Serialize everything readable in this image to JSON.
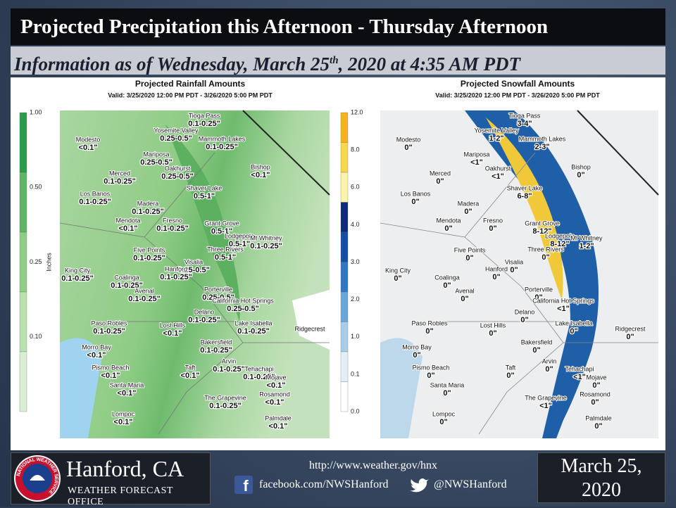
{
  "header": {
    "title": "Projected Precipitation this Afternoon - Thursday Afternoon",
    "subtitle": {
      "before": "Information as of Wednesday, March 25",
      "sup": "th",
      "after": ", 2020 at 4:35 AM PDT"
    }
  },
  "maps": [
    {
      "title": "Projected Rainfall Amounts",
      "valid": "Valid: 3/25/2020 12:00 PM PDT - 3/26/2020 5:00 PM PDT",
      "legend_label": "Inches",
      "legend_ticks": [
        "1.00",
        "0.50",
        "0.25",
        "0.10"
      ],
      "locations": [
        {
          "name": "Tioga Pass",
          "amount": "0.1-0.25\""
        },
        {
          "name": "Yosemite Valley",
          "amount": "0.25-0.5\""
        },
        {
          "name": "Mammoth Lakes",
          "amount": "0.1-0.25\""
        },
        {
          "name": "Modesto",
          "amount": "<0.1\""
        },
        {
          "name": "Mariposa",
          "amount": "0.25-0.5\""
        },
        {
          "name": "Oakhurst",
          "amount": "0.25-0.5\""
        },
        {
          "name": "Bishop",
          "amount": "<0.1\""
        },
        {
          "name": "Merced",
          "amount": "0.1-0.25\""
        },
        {
          "name": "Shaver Lake",
          "amount": "0.5-1\""
        },
        {
          "name": "Los Banos",
          "amount": "0.1-0.25\""
        },
        {
          "name": "Madera",
          "amount": "0.1-0.25\""
        },
        {
          "name": "Mendota",
          "amount": "<0.1\""
        },
        {
          "name": "Fresno",
          "amount": "0.1-0.25\""
        },
        {
          "name": "Grant Grove",
          "amount": "0.5-1\""
        },
        {
          "name": "Lodgepole",
          "amount": "0.5-1\""
        },
        {
          "name": "Mt Whitney",
          "amount": "0.1-0.25\""
        },
        {
          "name": "Five Points",
          "amount": "0.1-0.25\""
        },
        {
          "name": "Three Rivers",
          "amount": "0.5-1\""
        },
        {
          "name": "Visalia",
          "amount": "0.25-0.5\""
        },
        {
          "name": "Hanford",
          "amount": "0.1-0.25\""
        },
        {
          "name": "King City",
          "amount": "0.1-0.25\""
        },
        {
          "name": "Coalinga",
          "amount": "0.1-0.25\""
        },
        {
          "name": "Avenal",
          "amount": "0.1-0.25\""
        },
        {
          "name": "Porterville",
          "amount": "0.25-0.5\""
        },
        {
          "name": "California Hot Springs",
          "amount": "0.25-0.5\""
        },
        {
          "name": "Delano",
          "amount": "0.1-0.25\""
        },
        {
          "name": "Paso Robles",
          "amount": "0.1-0.25\""
        },
        {
          "name": "Lost Hills",
          "amount": "<0.1\""
        },
        {
          "name": "Lake Isabella",
          "amount": "0.1-0.25\""
        },
        {
          "name": "Ridgecrest"
        },
        {
          "name": "Morro Bay",
          "amount": "<0.1\""
        },
        {
          "name": "Bakersfield",
          "amount": "0.1-0.25\""
        },
        {
          "name": "Pismo Beach",
          "amount": "<0.1\""
        },
        {
          "name": "Taft",
          "amount": "<0.1\""
        },
        {
          "name": "Arvin",
          "amount": "0.1-0.25\""
        },
        {
          "name": "Tehachapi",
          "amount": "0.1-0.25\""
        },
        {
          "name": "Mojave",
          "amount": "<0.1\""
        },
        {
          "name": "Santa Maria",
          "amount": "<0.1\""
        },
        {
          "name": "Rosamond",
          "amount": "<0.1\""
        },
        {
          "name": "The Grapevine",
          "amount": "0.1-0.25\""
        },
        {
          "name": "Lompoc",
          "amount": "<0.1\""
        },
        {
          "name": "Palmdale",
          "amount": "<0.1\""
        }
      ]
    },
    {
      "title": "Projected Snowfall Amounts",
      "valid": "Valid: 3/25/2020 12:00 PM PDT - 3/26/2020 5:00 PM PDT",
      "legend_ticks": [
        "12.0",
        "8.0",
        "6.0",
        "4.0",
        "3.0",
        "2.0",
        "1.0",
        "0.1",
        "0.0"
      ],
      "locations": [
        {
          "name": "Tioga Pass",
          "amount": "3-4\""
        },
        {
          "name": "Yosemite Valley",
          "amount": "1-2\""
        },
        {
          "name": "Mammoth Lakes",
          "amount": "2-3\""
        },
        {
          "name": "Modesto",
          "amount": "0\""
        },
        {
          "name": "Mariposa",
          "amount": "<1\""
        },
        {
          "name": "Oakhurst",
          "amount": "<1\""
        },
        {
          "name": "Bishop",
          "amount": "0\""
        },
        {
          "name": "Merced",
          "amount": "0\""
        },
        {
          "name": "Shaver Lake",
          "amount": "6-8\""
        },
        {
          "name": "Los Banos",
          "amount": "0\""
        },
        {
          "name": "Madera",
          "amount": "0\""
        },
        {
          "name": "Mendota",
          "amount": "0\""
        },
        {
          "name": "Fresno",
          "amount": "0\""
        },
        {
          "name": "Grant Grove",
          "amount": "8-12\""
        },
        {
          "name": "Lodgepole",
          "amount": "8-12\""
        },
        {
          "name": "Mt Whitney",
          "amount": "1-2\""
        },
        {
          "name": "Five Points",
          "amount": "0\""
        },
        {
          "name": "Three Rivers",
          "amount": "0\""
        },
        {
          "name": "Visalia",
          "amount": "0\""
        },
        {
          "name": "Hanford",
          "amount": "0\""
        },
        {
          "name": "King City",
          "amount": "0\""
        },
        {
          "name": "Coalinga",
          "amount": "0\""
        },
        {
          "name": "Avenal",
          "amount": "0\""
        },
        {
          "name": "Porterville",
          "amount": "0\""
        },
        {
          "name": "California Hot Springs",
          "amount": "<1\""
        },
        {
          "name": "Delano",
          "amount": "0\""
        },
        {
          "name": "Paso Robles",
          "amount": "0\""
        },
        {
          "name": "Lost Hills",
          "amount": "0\""
        },
        {
          "name": "Lake Isabella",
          "amount": "0\""
        },
        {
          "name": "Ridgecrest",
          "amount": "0\""
        },
        {
          "name": "Morro Bay",
          "amount": "0\""
        },
        {
          "name": "Bakersfield",
          "amount": "0\""
        },
        {
          "name": "Pismo Beach",
          "amount": "0\""
        },
        {
          "name": "Taft",
          "amount": "0\""
        },
        {
          "name": "Arvin",
          "amount": "0\""
        },
        {
          "name": "Tehachapi",
          "amount": "<1\""
        },
        {
          "name": "Mojave",
          "amount": "0\""
        },
        {
          "name": "Santa Maria",
          "amount": "0\""
        },
        {
          "name": "Rosamond",
          "amount": "0\""
        },
        {
          "name": "The Grapevine",
          "amount": "<1\""
        },
        {
          "name": "Lompoc",
          "amount": "0\""
        },
        {
          "name": "Palmdale",
          "amount": "0\""
        }
      ]
    }
  ],
  "footer": {
    "logo_text": "NATIONAL WEATHER SERVICE",
    "office": "Hanford, CA",
    "office_type": "WEATHER FORECAST OFFICE",
    "website": "http://www.weather.gov/hnx",
    "facebook": "facebook.com/NWSHanford",
    "twitter": "@NWSHanford",
    "date": "March 25, 2020"
  }
}
